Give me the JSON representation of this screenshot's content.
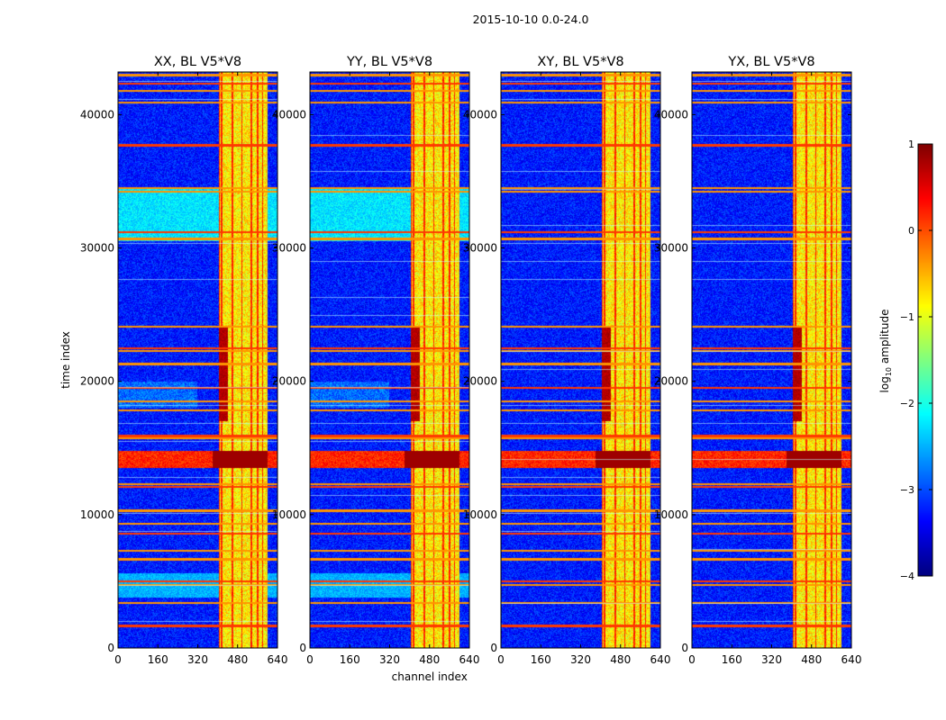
{
  "suptitle": "2015-10-10 0.0-24.0",
  "chart_data": {
    "type": "heatmap",
    "xlabel": "channel index",
    "ylabel": "time index",
    "xlim": [
      0,
      640
    ],
    "ylim": [
      0,
      43200
    ],
    "xticks": [
      0,
      160,
      320,
      480,
      640
    ],
    "yticks": [
      0,
      10000,
      20000,
      30000,
      40000
    ],
    "panels": [
      {
        "title": "XX, BL V5*V8",
        "pol": "XX"
      },
      {
        "title": "YY, BL V5*V8",
        "pol": "YY"
      },
      {
        "title": "XY, BL V5*V8",
        "pol": "XY"
      },
      {
        "title": "YX, BL V5*V8",
        "pol": "YX"
      }
    ],
    "colorbar": {
      "label": "log10 amplitude",
      "label_main": "log",
      "label_sub": "10",
      "label_tail": " amplitude",
      "range": [
        -4,
        1
      ],
      "ticks": [
        -4,
        -3,
        -2,
        -1,
        0,
        1
      ],
      "tick_labels": [
        "−4",
        "−3",
        "−2",
        "−1",
        "0",
        "1"
      ],
      "colormap": "jet"
    },
    "features": {
      "rfi_band_channels": [
        405,
        600
      ],
      "strong_channel_columns": [
        405,
        417,
        460,
        497,
        535,
        560,
        580,
        598
      ],
      "strong_band_time": [
        13500,
        14800
      ],
      "dark_channel_time": [
        17000,
        24000
      ],
      "bright_time_rows": [
        1700,
        3400,
        4700,
        5000,
        6700,
        7300,
        8600,
        9300,
        10300,
        12100,
        12300,
        15700,
        15900,
        17800,
        18500,
        19500,
        21300,
        22300,
        22500,
        24100,
        30700,
        31200,
        34200,
        34500,
        37700,
        40900,
        41800,
        42300,
        43000
      ]
    }
  }
}
